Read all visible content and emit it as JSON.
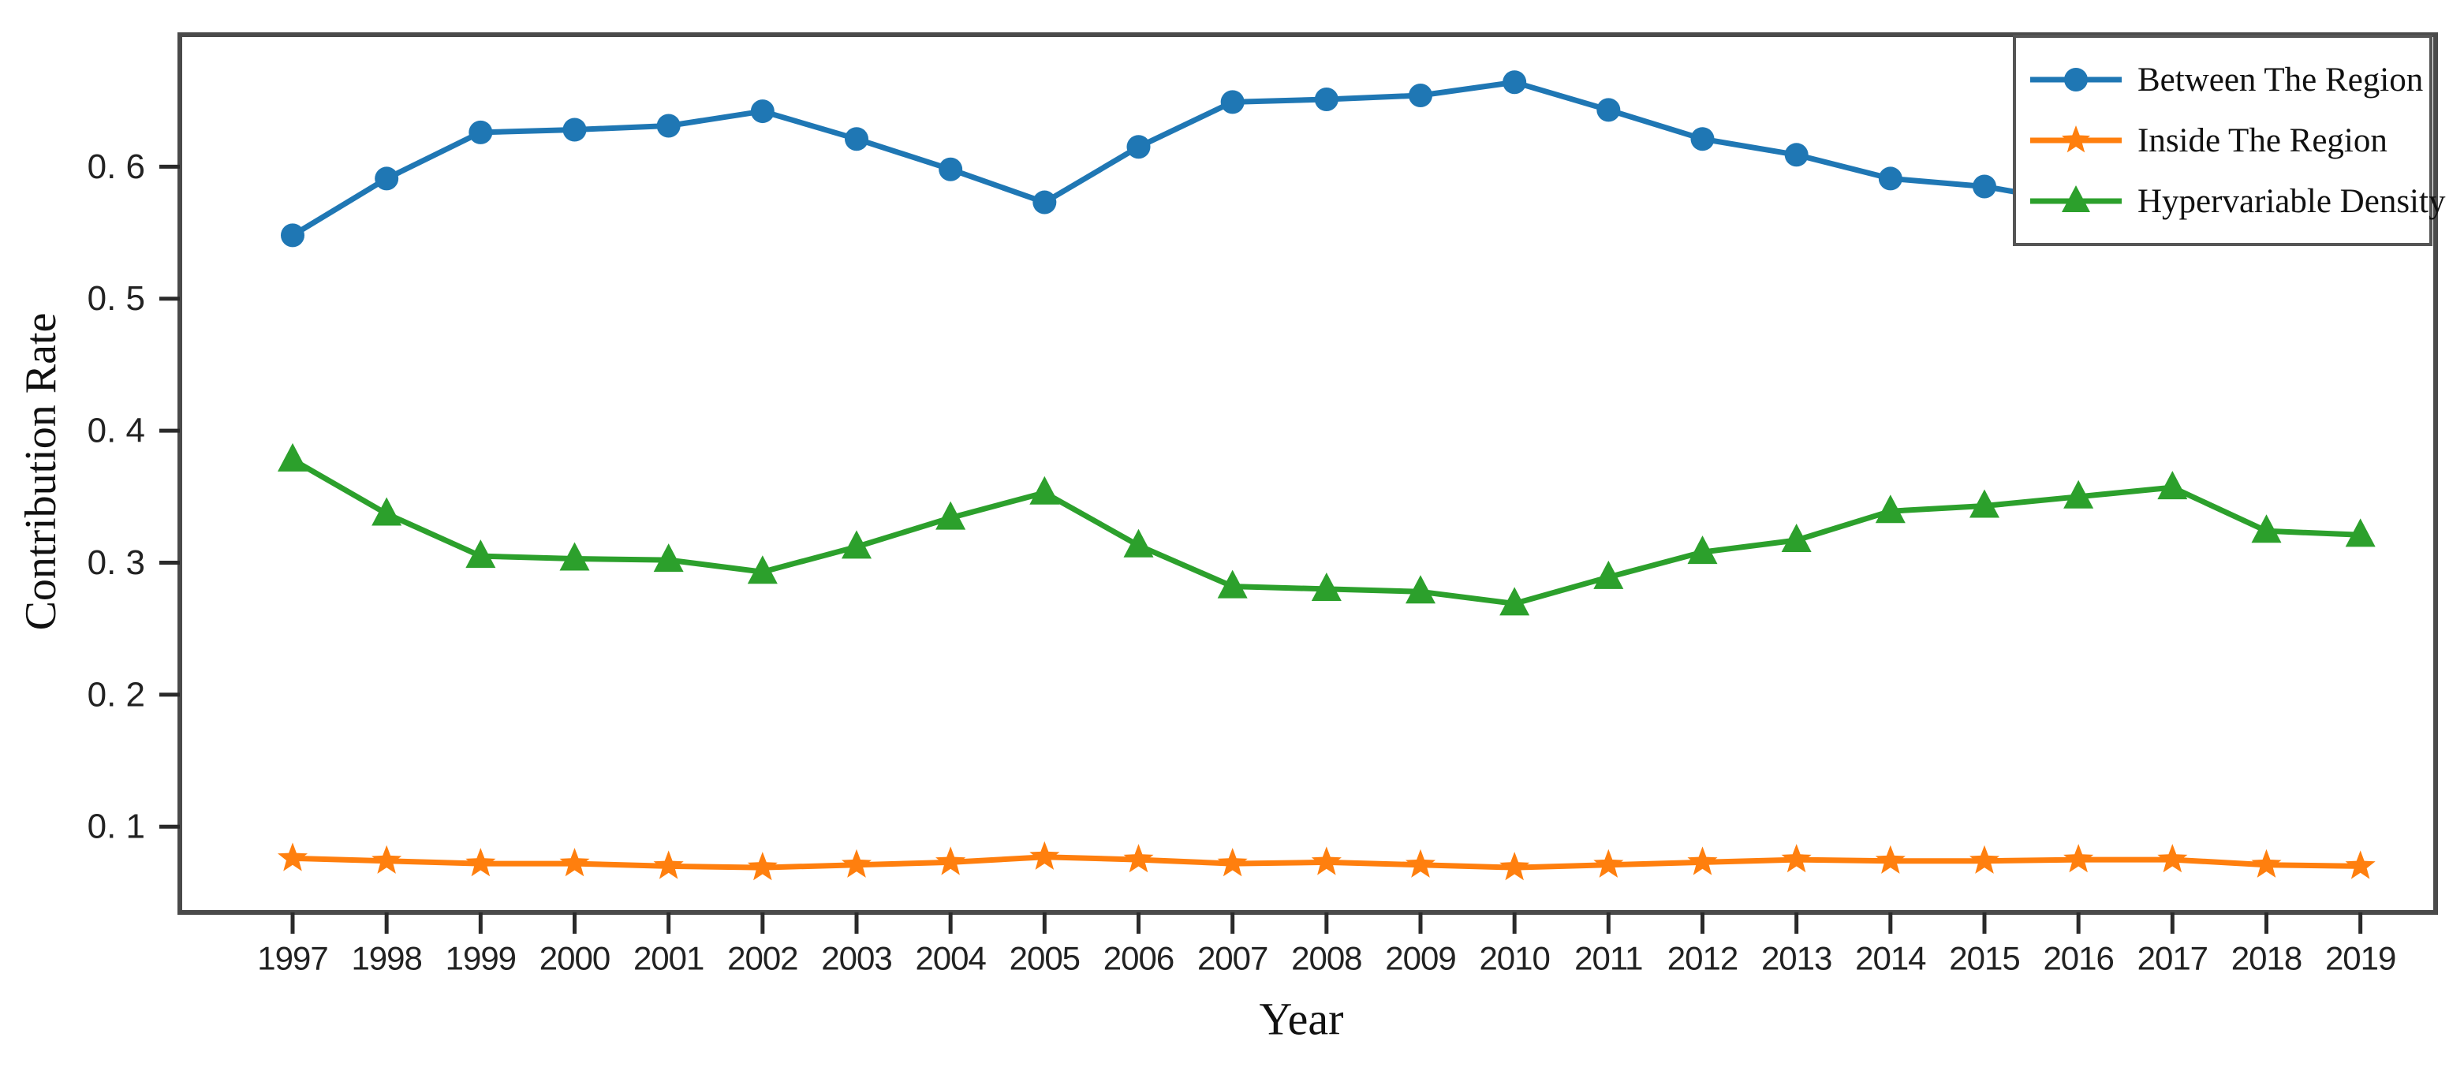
{
  "chart_data": {
    "type": "line",
    "title": "",
    "xlabel": "Year",
    "ylabel": "Contribution Rate",
    "x": [
      1997,
      1998,
      1999,
      2000,
      2001,
      2002,
      2003,
      2004,
      2005,
      2006,
      2007,
      2008,
      2009,
      2010,
      2011,
      2012,
      2013,
      2014,
      2015,
      2016,
      2017,
      2018,
      2019
    ],
    "series": [
      {
        "name": "Between The Region",
        "color": "#1f77b4",
        "marker": "circle",
        "values": [
          0.548,
          0.591,
          0.626,
          0.628,
          0.631,
          0.642,
          0.621,
          0.598,
          0.573,
          0.615,
          0.649,
          0.651,
          0.654,
          0.664,
          0.643,
          0.621,
          0.609,
          0.591,
          0.585,
          null,
          null,
          null,
          null
        ],
        "note": "line hidden behind legend box after 2015",
        "clipped_by_legend": true
      },
      {
        "name": "Inside The Region",
        "color": "#ff7f0e",
        "marker": "star",
        "values": [
          0.076,
          0.074,
          0.072,
          0.072,
          0.07,
          0.069,
          0.071,
          0.073,
          0.077,
          0.075,
          0.072,
          0.073,
          0.071,
          0.069,
          0.071,
          0.073,
          0.075,
          0.074,
          0.074,
          0.075,
          0.075,
          0.071,
          0.07
        ]
      },
      {
        "name": "Hypervariable Density",
        "color": "#2ca02c",
        "marker": "triangle",
        "values": [
          0.378,
          0.337,
          0.305,
          0.303,
          0.302,
          0.293,
          0.312,
          0.334,
          0.353,
          0.313,
          0.282,
          0.28,
          0.278,
          0.269,
          0.289,
          0.308,
          0.317,
          0.339,
          0.343,
          0.35,
          0.357,
          0.324,
          0.321
        ]
      }
    ],
    "xlim": [
      1995.8,
      2019.8
    ],
    "ylim": [
      0.035,
      0.7
    ],
    "yticks": [
      0.1,
      0.2,
      0.3,
      0.4,
      0.5,
      0.6
    ],
    "ytick_labels": [
      "0. 1",
      "0. 2",
      "0. 3",
      "0. 4",
      "0. 5",
      "0. 6"
    ],
    "xtick_labels": [
      "1997",
      "1998",
      "1999",
      "2000",
      "2001",
      "2002",
      "2003",
      "2004",
      "2005",
      "2006",
      "2007",
      "2008",
      "2009",
      "2010",
      "2011",
      "2012",
      "2013",
      "2014",
      "2015",
      "2016",
      "2017",
      "2018",
      "2019"
    ],
    "grid": false,
    "legend_position": "upper right",
    "legend_frame": true
  },
  "style_colors": {
    "axis_spine": "#4a4a4a",
    "tick_mark": "#2a2a2a",
    "tick_text": "#222222",
    "label_text": "#111111",
    "legend_border": "#555555",
    "background": "#ffffff"
  }
}
